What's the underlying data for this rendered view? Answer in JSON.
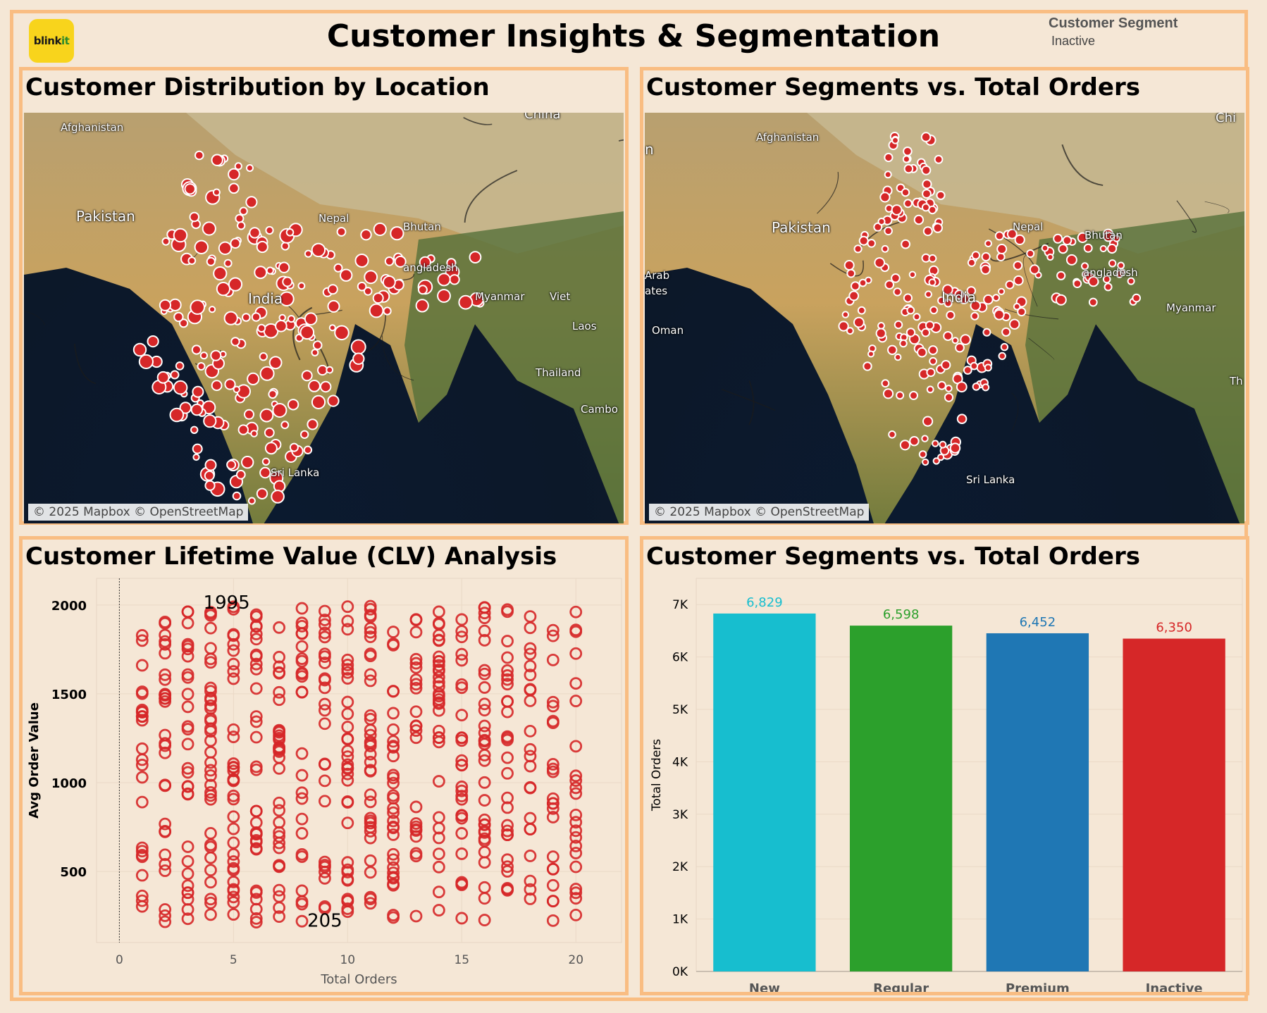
{
  "header": {
    "logo_text_a": "blink",
    "logo_text_b": "it",
    "title": "Customer Insights & Segmentation",
    "legend_title": "Customer Segment",
    "legend_item": "Inactive"
  },
  "panels": {
    "map1": {
      "title": "Customer Distribution by Location",
      "attribution": "© 2025 Mapbox © OpenStreetMap",
      "labels": [
        "Afghanistan",
        "China",
        "Pakistan",
        "Nepal",
        "Bhutan",
        "angladesh",
        "India",
        "Myanmar",
        "Viet",
        "Laos",
        "Thailand",
        "Cambo",
        "Sri Lanka"
      ]
    },
    "map2": {
      "title": "Customer Segments vs. Total Orders",
      "attribution": "© 2025 Mapbox © OpenStreetMap",
      "labels": [
        "Afghanistan",
        "Chi",
        "Pakistan",
        "Nepal",
        "Bhutan",
        "angladesh",
        "India",
        "Myanmar",
        "Arab",
        "ates",
        "Oman",
        "Th",
        "Sri Lanka",
        "n"
      ]
    },
    "scatter": {
      "title": "Customer Lifetime Value (CLV) Analysis"
    },
    "bars": {
      "title": "Customer Segments vs. Total Orders"
    }
  },
  "chart_data": [
    {
      "type": "scatter",
      "xlabel": "Total Orders",
      "ylabel": "Avg Order Value",
      "xlim": [
        -1,
        22
      ],
      "ylim": [
        100,
        2150
      ],
      "xticks": [
        0,
        5,
        10,
        15,
        20
      ],
      "yticks": [
        500,
        1000,
        1500,
        2000
      ],
      "annotations": [
        {
          "text": "1995",
          "x": 4.7,
          "y": 1995
        },
        {
          "text": "205",
          "x": 9,
          "y": 205
        }
      ],
      "marker": "hollow circle",
      "color": "#d62728",
      "x_values": [
        1,
        2,
        3,
        4,
        5,
        6,
        7,
        8,
        9,
        10,
        11,
        12,
        13,
        14,
        15,
        16,
        17,
        18,
        19,
        20
      ],
      "y_range": [
        205,
        1995
      ]
    },
    {
      "type": "bar",
      "categories": [
        "New",
        "Regular",
        "Premium",
        "Inactive"
      ],
      "values": [
        6829,
        6598,
        6452,
        6350
      ],
      "labels": [
        "6,829",
        "6,598",
        "6,452",
        "6,350"
      ],
      "colors": [
        "#17becf",
        "#2ca02c",
        "#1f77b4",
        "#d62728"
      ],
      "ylabel": "Total Orders",
      "ylim": [
        0,
        7500
      ],
      "yticks": [
        "0K",
        "1K",
        "2K",
        "3K",
        "4K",
        "5K",
        "6K",
        "7K"
      ]
    }
  ]
}
